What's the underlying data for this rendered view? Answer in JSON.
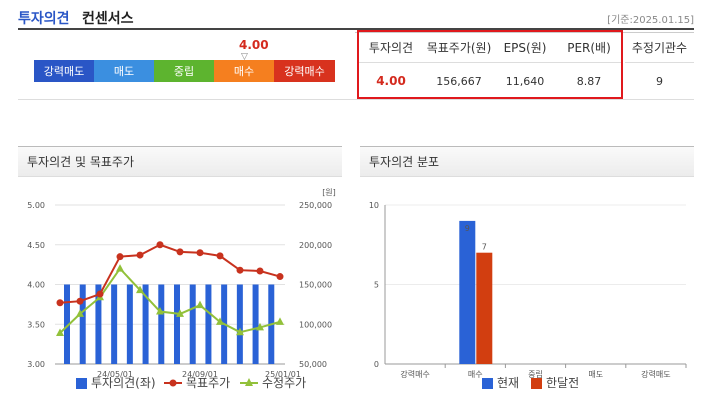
{
  "header": {
    "title_main": "투자의견",
    "title_sub": "컨센서스",
    "date": "[기준:2025.01.15]"
  },
  "opinion_scale": {
    "current_value": "4.00",
    "marker": "▽",
    "segments": [
      {
        "label": "강력매도",
        "color": "#2a56c6"
      },
      {
        "label": "매도",
        "color": "#3b8fe0"
      },
      {
        "label": "중립",
        "color": "#5db42f"
      },
      {
        "label": "매수",
        "color": "#f57f1f"
      },
      {
        "label": "강력매수",
        "color": "#d8321e"
      }
    ]
  },
  "summary": {
    "headers": [
      "투자의견",
      "목표주가(원)",
      "EPS(원)",
      "PER(배)",
      "추정기관수"
    ],
    "values": [
      "4.00",
      "156,667",
      "11,640",
      "8.87",
      "9"
    ]
  },
  "chart_data": [
    {
      "type": "bar+line",
      "title": "투자의견 및 목표주가",
      "y2_unit": "[원]",
      "ylim_left": [
        3.0,
        5.0
      ],
      "ylim_right": [
        50000,
        250000
      ],
      "y_ticks_left": [
        "5.00",
        "4.50",
        "4.00",
        "3.50",
        "3.00"
      ],
      "y_ticks_right": [
        "250,000",
        "200,000",
        "150,000",
        "100,000",
        "50,000"
      ],
      "x_ticks": [
        "24/05/01",
        "24/09/01",
        "25/01/01"
      ],
      "series": [
        {
          "name": "투자의견(좌)",
          "type": "bar",
          "color": "#2a62d6",
          "values": [
            4.0,
            4.0,
            4.0,
            4.0,
            4.0,
            4.0,
            4.0,
            4.0,
            4.0,
            4.0,
            4.0,
            4.0,
            4.0,
            4.0
          ]
        },
        {
          "name": "목표주가",
          "type": "line",
          "color": "#c8321e",
          "values": [
            127000,
            129000,
            138000,
            185000,
            187000,
            200000,
            191000,
            190000,
            186000,
            168000,
            167000,
            160000
          ]
        },
        {
          "name": "수정주가",
          "type": "line",
          "color": "#92c13a",
          "values": [
            89000,
            113000,
            134000,
            170000,
            143000,
            116000,
            113000,
            124000,
            103000,
            90000,
            96000,
            103000
          ]
        }
      ]
    },
    {
      "type": "bar",
      "title": "투자의견 분포",
      "categories": [
        "강력매수",
        "매수",
        "중립",
        "매도",
        "강력매도"
      ],
      "ylim": [
        0,
        10
      ],
      "y_ticks": [
        "10",
        "5",
        "0"
      ],
      "series": [
        {
          "name": "현재",
          "color": "#2a62d6",
          "values": [
            0,
            9,
            0,
            0,
            0
          ],
          "labels": [
            "",
            "9",
            "",
            "",
            ""
          ]
        },
        {
          "name": "한달전",
          "color": "#d23e10",
          "values": [
            0,
            7,
            0,
            0,
            0
          ],
          "labels": [
            "",
            "7",
            "",
            "",
            ""
          ]
        }
      ]
    }
  ]
}
